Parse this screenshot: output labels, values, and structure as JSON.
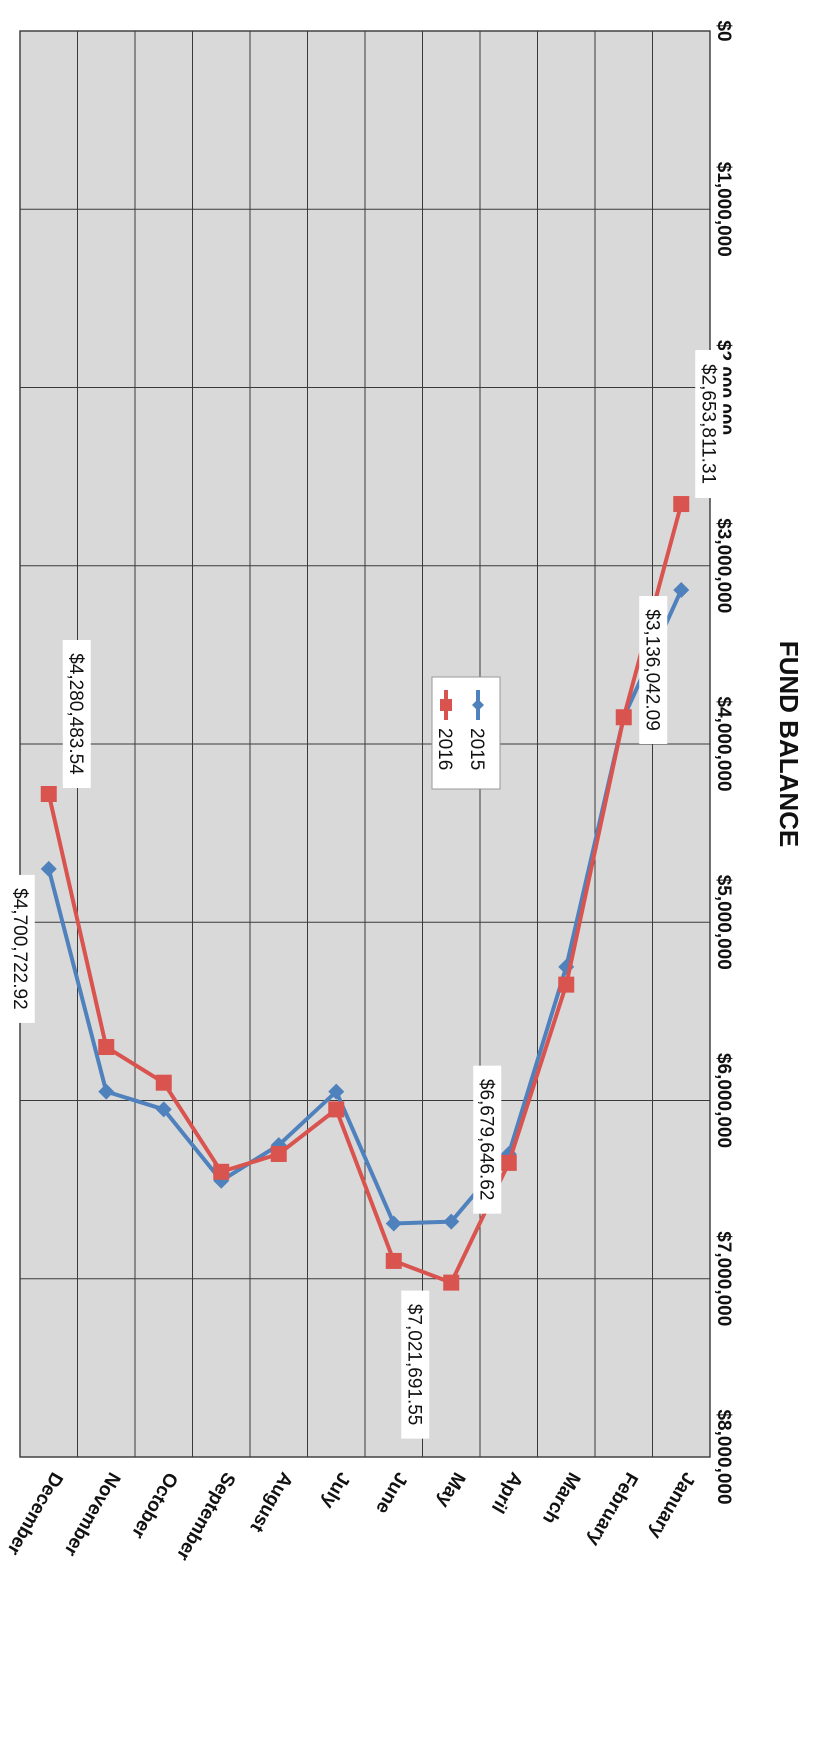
{
  "chart_data": {
    "type": "line",
    "title": "",
    "xlabel": "",
    "ylabel": "FUND BALANCE",
    "ylim": [
      0,
      8000000
    ],
    "yticks": [
      "$0",
      "$1,000,000",
      "$2,000,000",
      "$3,000,000",
      "$4,000,000",
      "$5,000,000",
      "$6,000,000",
      "$7,000,000",
      "$8,000,000"
    ],
    "categories": [
      "January",
      "February",
      "March",
      "April",
      "May",
      "June",
      "July",
      "August",
      "September",
      "October",
      "November",
      "December"
    ],
    "grid": true,
    "legend": "center-right",
    "orientation": "rotated-180",
    "series": [
      {
        "name": "2015",
        "color": "#4f81bd",
        "marker": "diamond",
        "values": [
          3136042.09,
          3850000,
          5250000,
          6300000,
          6679646.62,
          6690000,
          5950000,
          6250000,
          6450000,
          6050000,
          5950000,
          4700722.92
        ]
      },
      {
        "name": "2016",
        "color": "#d9534f",
        "marker": "square",
        "values": [
          2653811.31,
          3850000,
          5350000,
          6350000,
          7021691.55,
          6900000,
          6050000,
          6300000,
          6400000,
          5900000,
          5700000,
          4280483.54
        ]
      }
    ],
    "data_labels": [
      {
        "series": 0,
        "index": 0,
        "text": "$3,136,042.09"
      },
      {
        "series": 1,
        "index": 0,
        "text": "$2,653,811.31"
      },
      {
        "series": 1,
        "index": 4,
        "text": "$7,021,691.55"
      },
      {
        "series": 0,
        "index": 4,
        "text": "$6,679,646.62"
      },
      {
        "series": 0,
        "index": 11,
        "text": "$4,700,722.92"
      },
      {
        "series": 1,
        "index": 11,
        "text": "$4,280,483.54"
      }
    ]
  }
}
